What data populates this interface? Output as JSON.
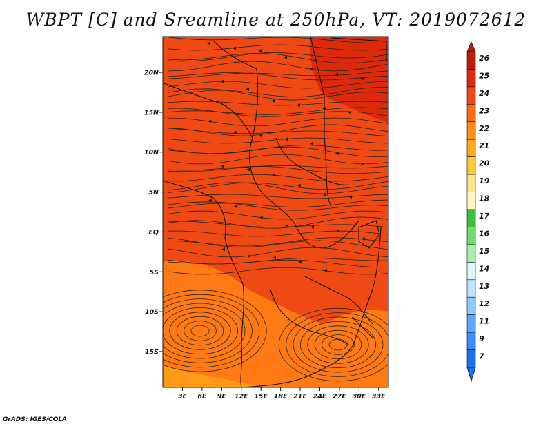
{
  "title": "WBPT [C] and Sreamline at 250hPa, VT: 2019072612",
  "credit": "GrADS: IGES/COLA",
  "map": {
    "lat_labels": [
      "20N",
      "15N",
      "10N",
      "5N",
      "EQ",
      "5S",
      "10S",
      "15S"
    ],
    "lon_labels": [
      "3E",
      "6E",
      "9E",
      "12E",
      "15E",
      "18E",
      "21E",
      "24E",
      "27E",
      "30E",
      "33E"
    ],
    "lat_values": [
      20,
      15,
      10,
      5,
      0,
      -5,
      -10,
      -15
    ],
    "lon_values": [
      3,
      6,
      9,
      12,
      15,
      18,
      21,
      24,
      27,
      30,
      33
    ],
    "lat_range": [
      -19.5,
      24.5
    ],
    "lon_range": [
      0,
      34.5
    ],
    "region_fills": [
      {
        "name": "base",
        "color": "#f04a14"
      },
      {
        "name": "north-east-warm",
        "color": "#dd2a0a"
      },
      {
        "name": "south-west-cool",
        "color": "#ff7a14"
      },
      {
        "name": "far-south-west",
        "color": "#ff9a14"
      }
    ]
  },
  "colorbar": {
    "labels": [
      "26",
      "25",
      "24",
      "23",
      "22",
      "21",
      "20",
      "19",
      "18",
      "17",
      "16",
      "15",
      "14",
      "13",
      "12",
      "11",
      "9",
      "7"
    ],
    "colors": [
      "#b81d0c",
      "#dd2a0a",
      "#f04a14",
      "#ff6a14",
      "#ff8c14",
      "#ffaa14",
      "#ffca38",
      "#ffe68c",
      "#fff5c0",
      "#3cbf3c",
      "#6edc6e",
      "#aaecaa",
      "#e0f8f8",
      "#bce4ff",
      "#8ec8ff",
      "#5aa8ff",
      "#3c8cff",
      "#1e6ef0"
    ],
    "top_arrow_color": "#b81d0c",
    "bottom_arrow_color": "#1e6ef0"
  }
}
